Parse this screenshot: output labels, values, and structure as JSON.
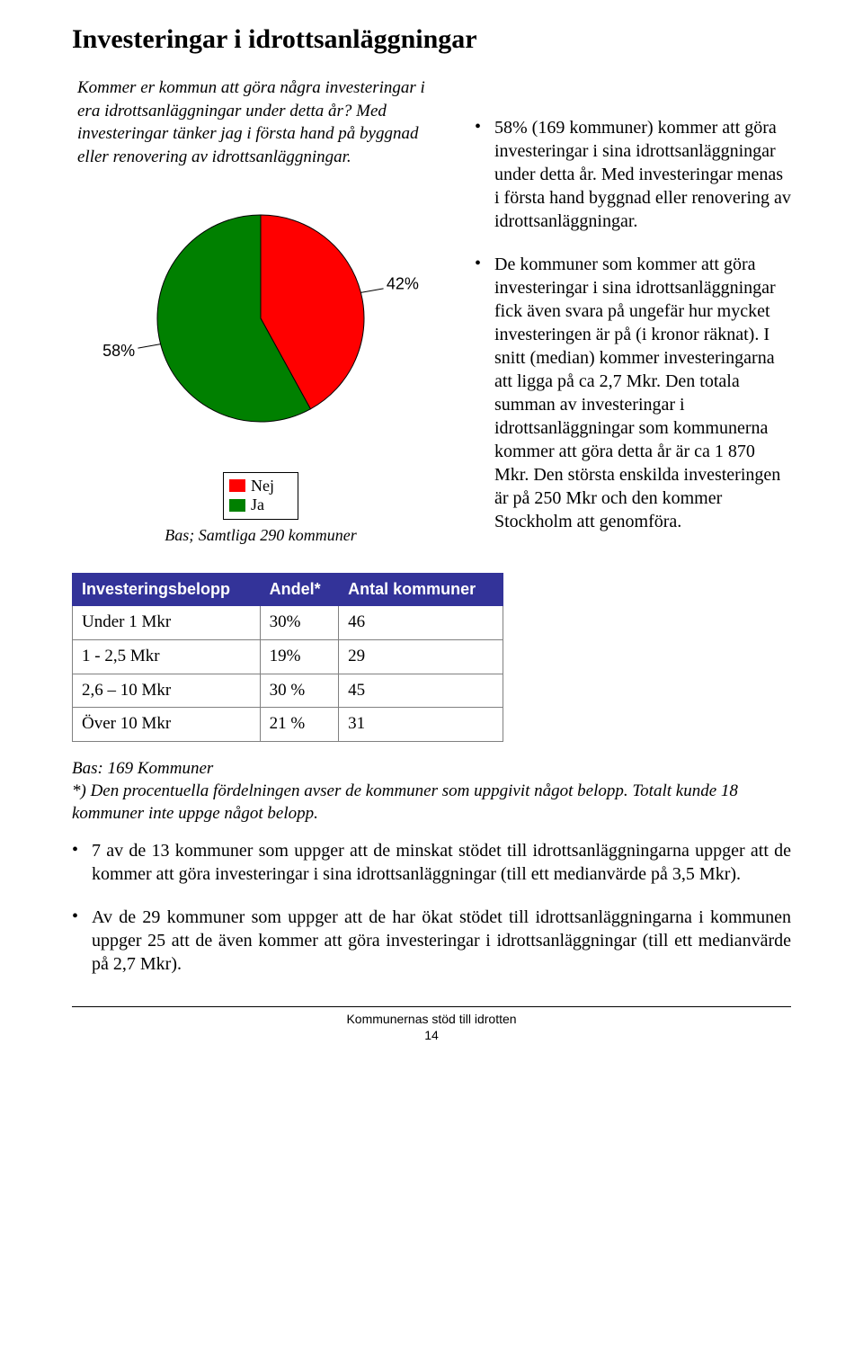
{
  "title": "Investeringar i idrottsanläggningar",
  "question_box": "Kommer er kommun att göra några investeringar i era idrottsanläggningar under detta år? Med investeringar tänker jag i första hand på byggnad eller renovering av idrottsanläggningar.",
  "pie_chart": {
    "type": "pie",
    "slices": [
      {
        "label": "Nej",
        "value": 42,
        "color": "#ff0000",
        "label_text": "42%"
      },
      {
        "label": "Ja",
        "value": 58,
        "color": "#008000",
        "label_text": "58%"
      }
    ],
    "label_fontsize": 18,
    "background_color": "#ffffff",
    "caption": "Bas; Samtliga 290 kommuner"
  },
  "legend": {
    "items": [
      {
        "label": "Nej",
        "color": "#ff0000"
      },
      {
        "label": "Ja",
        "color": "#008000"
      }
    ]
  },
  "bullets_right": [
    "58% (169 kommuner) kommer att göra investeringar i sina idrottsanläggningar under detta år. Med investeringar menas i första hand byggnad eller renovering av idrottsanläggningar.",
    "De kommuner som kommer att göra investeringar i sina idrottsanläggningar fick även svara på ungefär hur mycket investeringen är på (i kronor räknat). I snitt (median) kommer investeringarna att ligga på ca 2,7 Mkr. Den totala summan av investeringar i idrottsanläggningar som kommunerna kommer att göra detta år är ca 1 870 Mkr. Den största enskilda investeringen är på 250 Mkr och den kommer Stockholm att genomföra."
  ],
  "table": {
    "header_bg": "#333399",
    "header_fg": "#ffffff",
    "columns": [
      "Investeringsbelopp",
      "Andel*",
      "Antal kommuner"
    ],
    "rows": [
      [
        "Under 1 Mkr",
        "30%",
        "46"
      ],
      [
        "1 - 2,5 Mkr",
        "19%",
        "29"
      ],
      [
        "2,6 – 10 Mkr",
        "30 %",
        "45"
      ],
      [
        "Över 10 Mkr",
        "21 %",
        "31"
      ]
    ]
  },
  "footnote_lines": [
    "Bas: 169 Kommuner",
    "*) Den procentuella fördelningen avser de kommuner som uppgivit något belopp. Totalt kunde 18 kommuner inte uppge något belopp."
  ],
  "bullets_lower": [
    "7 av de 13 kommuner som uppger att de minskat stödet till idrottsanläggningarna uppger att de kommer att göra investeringar i sina idrottsanläggningar (till ett medianvärde på 3,5 Mkr).",
    "Av de 29 kommuner som uppger att de har ökat stödet till idrottsanläggningarna i kommunen uppger 25 att de även kommer att göra investeringar i idrottsanläggningar (till ett medianvärde på 2,7 Mkr)."
  ],
  "footer": {
    "line1": "Kommunernas stöd till idrotten",
    "line2": "14"
  }
}
